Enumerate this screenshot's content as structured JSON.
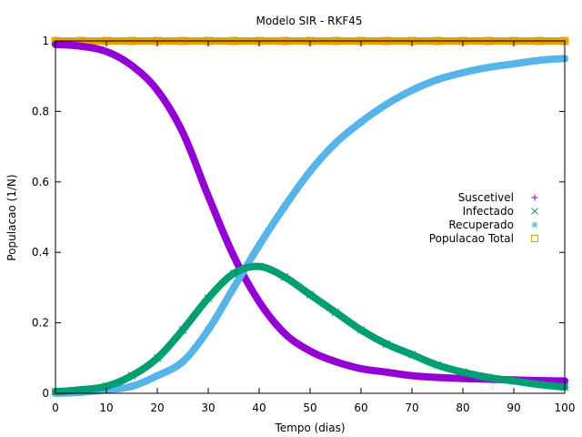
{
  "chart_data": {
    "type": "scatter",
    "title": "Modelo SIR - RKF45",
    "xlabel": "Tempo (dias)",
    "ylabel": "Populacao (1/N)",
    "xlim": [
      0,
      100
    ],
    "ylim": [
      0,
      1
    ],
    "xticks": [
      0,
      10,
      20,
      30,
      40,
      50,
      60,
      70,
      80,
      90,
      100
    ],
    "yticks": [
      0,
      0.2,
      0.4,
      0.6,
      0.8,
      1
    ],
    "ytick_labels": [
      "0",
      "0.2",
      "0.4",
      "0.6",
      "0.8",
      "1"
    ],
    "grid": false,
    "legend_position": "right-middle",
    "x": [
      0,
      5,
      10,
      15,
      20,
      25,
      30,
      35,
      40,
      45,
      50,
      55,
      60,
      65,
      70,
      75,
      80,
      85,
      90,
      95,
      100
    ],
    "series": [
      {
        "name": "Suscetivel",
        "marker": "plus",
        "color": "#9400D3",
        "values": [
          0.99,
          0.985,
          0.97,
          0.93,
          0.86,
          0.74,
          0.56,
          0.39,
          0.26,
          0.17,
          0.12,
          0.09,
          0.07,
          0.06,
          0.05,
          0.045,
          0.042,
          0.04,
          0.038,
          0.036,
          0.035
        ]
      },
      {
        "name": "Infectado",
        "marker": "cross",
        "color": "#009E73",
        "values": [
          0.005,
          0.01,
          0.02,
          0.05,
          0.1,
          0.18,
          0.27,
          0.34,
          0.36,
          0.33,
          0.28,
          0.23,
          0.18,
          0.14,
          0.11,
          0.08,
          0.06,
          0.045,
          0.035,
          0.025,
          0.018
        ]
      },
      {
        "name": "Recuperado",
        "marker": "star",
        "color": "#56B4E9",
        "values": [
          0.0,
          0.003,
          0.01,
          0.02,
          0.05,
          0.09,
          0.18,
          0.3,
          0.42,
          0.53,
          0.63,
          0.71,
          0.77,
          0.82,
          0.86,
          0.89,
          0.91,
          0.925,
          0.935,
          0.945,
          0.95
        ]
      },
      {
        "name": "Populacao Total",
        "marker": "square",
        "color": "#E69F00",
        "values": [
          1,
          1,
          1,
          1,
          1,
          1,
          1,
          1,
          1,
          1,
          1,
          1,
          1,
          1,
          1,
          1,
          1,
          1,
          1,
          1,
          1
        ]
      }
    ]
  }
}
